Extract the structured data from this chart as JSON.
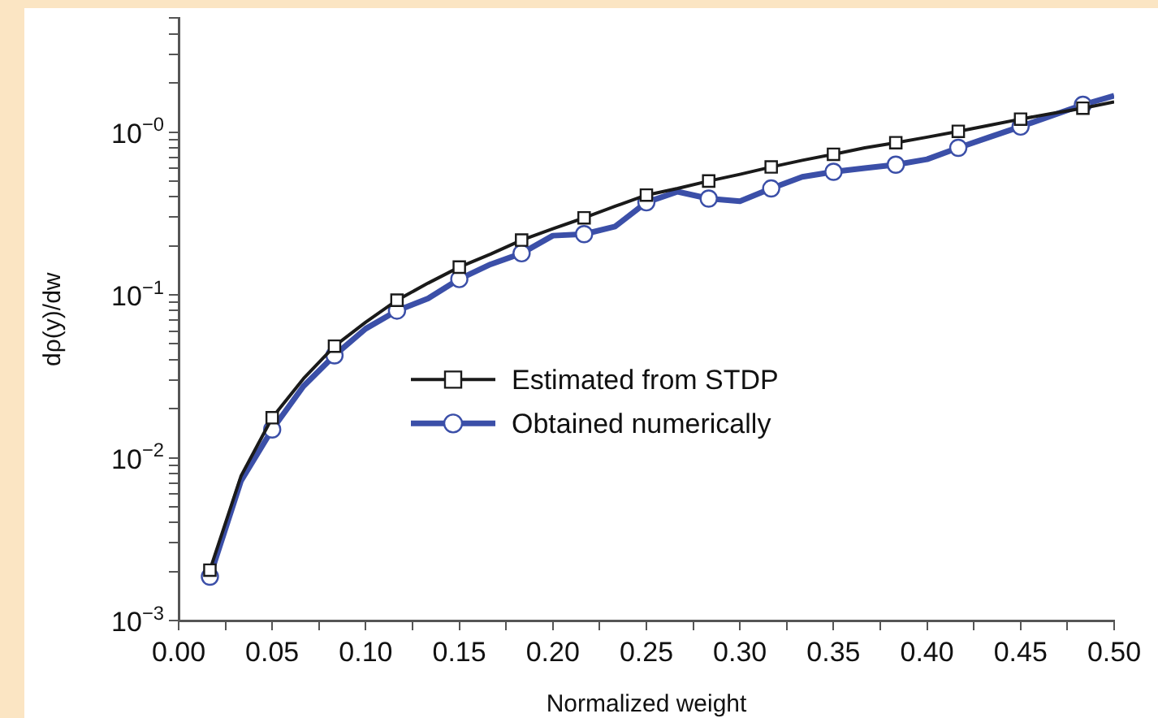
{
  "chart_data": {
    "type": "line",
    "xlabel": "Normalized weight",
    "ylabel": "dρ(y)/dw",
    "x": [
      0.0167,
      0.0333,
      0.05,
      0.0667,
      0.0833,
      0.1,
      0.1167,
      0.1333,
      0.15,
      0.1667,
      0.1833,
      0.2,
      0.2167,
      0.2333,
      0.25,
      0.2667,
      0.2833,
      0.3,
      0.3167,
      0.3333,
      0.35,
      0.3667,
      0.3833,
      0.4,
      0.4167,
      0.4333,
      0.45,
      0.4667,
      0.4833,
      0.5
    ],
    "series": [
      {
        "name": "Estimated from STDP",
        "color": "#1a1a1a",
        "marker": "square",
        "values": [
          0.00204,
          0.0077,
          0.0176,
          0.0306,
          0.0484,
          0.068,
          0.0927,
          0.118,
          0.148,
          0.178,
          0.217,
          0.255,
          0.297,
          0.35,
          0.41,
          0.45,
          0.5,
          0.55,
          0.61,
          0.67,
          0.73,
          0.8,
          0.86,
          0.93,
          1.01,
          1.1,
          1.2,
          1.3,
          1.4,
          1.53
        ]
      },
      {
        "name": "Obtained numerically",
        "color": "#3b4fa8",
        "marker": "circle",
        "values": [
          0.00186,
          0.0072,
          0.0149,
          0.0275,
          0.0425,
          0.062,
          0.08,
          0.095,
          0.125,
          0.154,
          0.18,
          0.231,
          0.236,
          0.263,
          0.37,
          0.43,
          0.39,
          0.376,
          0.45,
          0.53,
          0.57,
          0.6,
          0.63,
          0.68,
          0.8,
          0.93,
          1.08,
          1.26,
          1.47,
          1.67
        ]
      }
    ],
    "log": true,
    "grid": false,
    "legend": "center",
    "line_style": "solid",
    "xlim": [
      0,
      0.5
    ],
    "xticks": [
      {
        "value": 0,
        "label": "0.00"
      },
      {
        "value": 0.025,
        "label": null
      },
      {
        "value": 0.05,
        "label": "0.05"
      },
      {
        "value": 0.075,
        "label": null
      },
      {
        "value": 0.1,
        "label": "0.10"
      },
      {
        "value": 0.125,
        "label": null
      },
      {
        "value": 0.15,
        "label": "0.15"
      },
      {
        "value": 0.175,
        "label": null
      },
      {
        "value": 0.2,
        "label": "0.20"
      },
      {
        "value": 0.225,
        "label": null
      },
      {
        "value": 0.25,
        "label": "0.25"
      },
      {
        "value": 0.275,
        "label": null
      },
      {
        "value": 0.3,
        "label": "0.30"
      },
      {
        "value": 0.325,
        "label": null
      },
      {
        "value": 0.35,
        "label": "0.35"
      },
      {
        "value": 0.375,
        "label": null
      },
      {
        "value": 0.4,
        "label": "0.40"
      },
      {
        "value": 0.425,
        "label": null
      },
      {
        "value": 0.45,
        "label": "0.45"
      },
      {
        "value": 0.475,
        "label": null
      },
      {
        "value": 0.5,
        "label": "0.50"
      }
    ],
    "ylim": [
      0.001,
      5
    ],
    "yticks": [
      {
        "value": 0.001,
        "label": "10$^{−3}$"
      },
      {
        "value": 0.002,
        "label": null
      },
      {
        "value": 0.003,
        "label": null
      },
      {
        "value": 0.004,
        "label": null
      },
      {
        "value": 0.005,
        "label": null
      },
      {
        "value": 0.006,
        "label": null
      },
      {
        "value": 0.007,
        "label": null
      },
      {
        "value": 0.008,
        "label": null
      },
      {
        "value": 0.009,
        "label": null
      },
      {
        "value": 0.01,
        "label": "10$^{−2}$"
      },
      {
        "value": 0.02,
        "label": null
      },
      {
        "value": 0.03,
        "label": null
      },
      {
        "value": 0.04,
        "label": null
      },
      {
        "value": 0.05,
        "label": null
      },
      {
        "value": 0.06,
        "label": null
      },
      {
        "value": 0.07,
        "label": null
      },
      {
        "value": 0.08,
        "label": null
      },
      {
        "value": 0.09,
        "label": null
      },
      {
        "value": 0.1,
        "label": "10$^{−1}$"
      },
      {
        "value": 0.2,
        "label": null
      },
      {
        "value": 0.3,
        "label": null
      },
      {
        "value": 0.4,
        "label": null
      },
      {
        "value": 0.5,
        "label": null
      },
      {
        "value": 0.6,
        "label": null
      },
      {
        "value": 0.7,
        "label": null
      },
      {
        "value": 0.8,
        "label": null
      },
      {
        "value": 0.9,
        "label": null
      },
      {
        "value": 1,
        "label": "10$^{−0}$"
      },
      {
        "value": 2,
        "label": null
      },
      {
        "value": 3,
        "label": null
      },
      {
        "value": 4,
        "label": null
      },
      {
        "value": 5,
        "label": null
      }
    ]
  }
}
